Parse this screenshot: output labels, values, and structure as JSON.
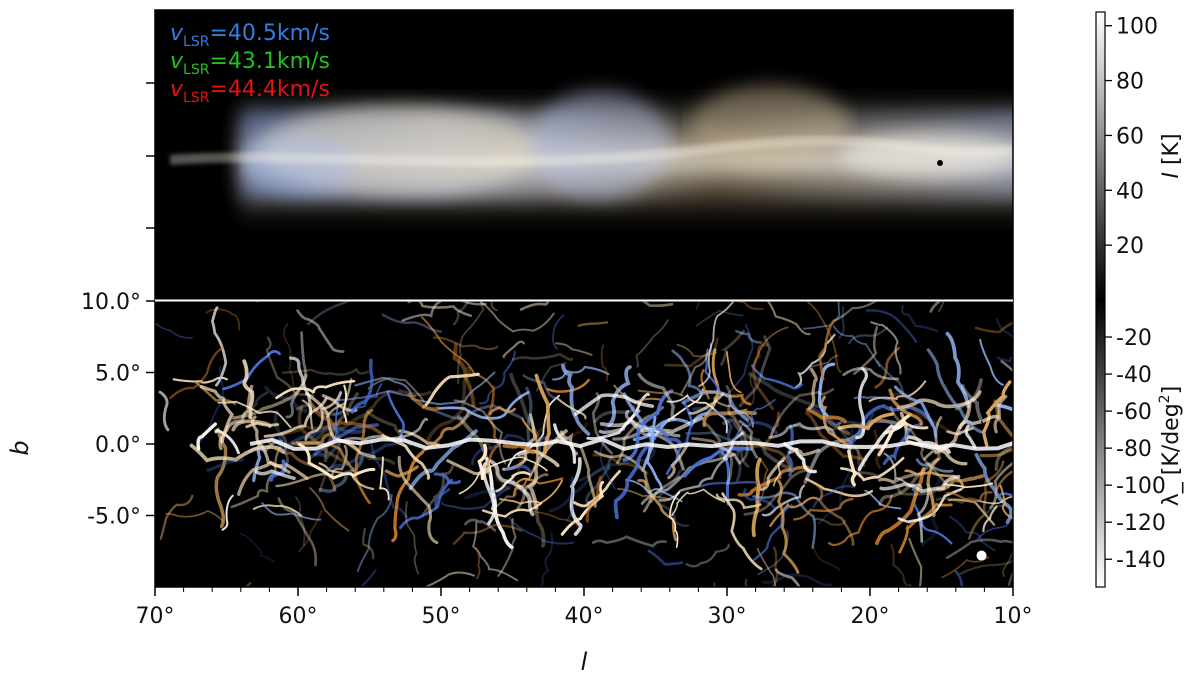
{
  "chart_data": [
    {
      "type": "heatmap",
      "panel": "top",
      "x_range_deg": [
        70,
        10
      ],
      "y_range_deg": [
        -10,
        10
      ],
      "colorbar": {
        "label_symbol": "I",
        "label_unit": "[K]",
        "ticks": [
          "20",
          "40",
          "60",
          "80",
          "100"
        ],
        "tick_values": [
          20,
          40,
          60,
          80,
          100
        ],
        "range": [
          0,
          105
        ],
        "colormap": "gray"
      },
      "legend": {
        "placement": "top-left",
        "entries": [
          {
            "prefix": "v",
            "subscript": "LSR",
            "value": "=40.5km/s",
            "color": "#2f7fe0"
          },
          {
            "prefix": "v",
            "subscript": "LSR",
            "value": "=43.1km/s",
            "color": "#21c21d"
          },
          {
            "prefix": "v",
            "subscript": "LSR",
            "value": "=44.4km/s",
            "color": "#e01414"
          }
        ]
      }
    },
    {
      "type": "heatmap",
      "panel": "bottom",
      "xlabel": "l",
      "ylabel": "b",
      "x_ticks": [
        "70°",
        "60°",
        "50°",
        "40°",
        "30°",
        "20°",
        "10°"
      ],
      "x_tick_values": [
        70,
        60,
        50,
        40,
        30,
        20,
        10
      ],
      "y_ticks": [
        "10.0°",
        "5.0°",
        "0.0°",
        "-5.0°"
      ],
      "y_tick_values": [
        10,
        5,
        0,
        -5
      ],
      "x_range_deg": [
        70,
        10
      ],
      "y_range_deg": [
        -10,
        10
      ],
      "colorbar": {
        "label": "λ_ [K/deg",
        "label_sup": "2",
        "label_end": "]",
        "ticks": [
          "-20",
          "-40",
          "-60",
          "-80",
          "-100",
          "-120",
          "-140"
        ],
        "tick_values": [
          -20,
          -40,
          -60,
          -80,
          -100,
          -120,
          -140
        ],
        "range": [
          -155,
          0
        ],
        "colormap": "gray_r"
      },
      "beam_marker": {
        "l": 12.2,
        "b": -7.8
      }
    }
  ]
}
